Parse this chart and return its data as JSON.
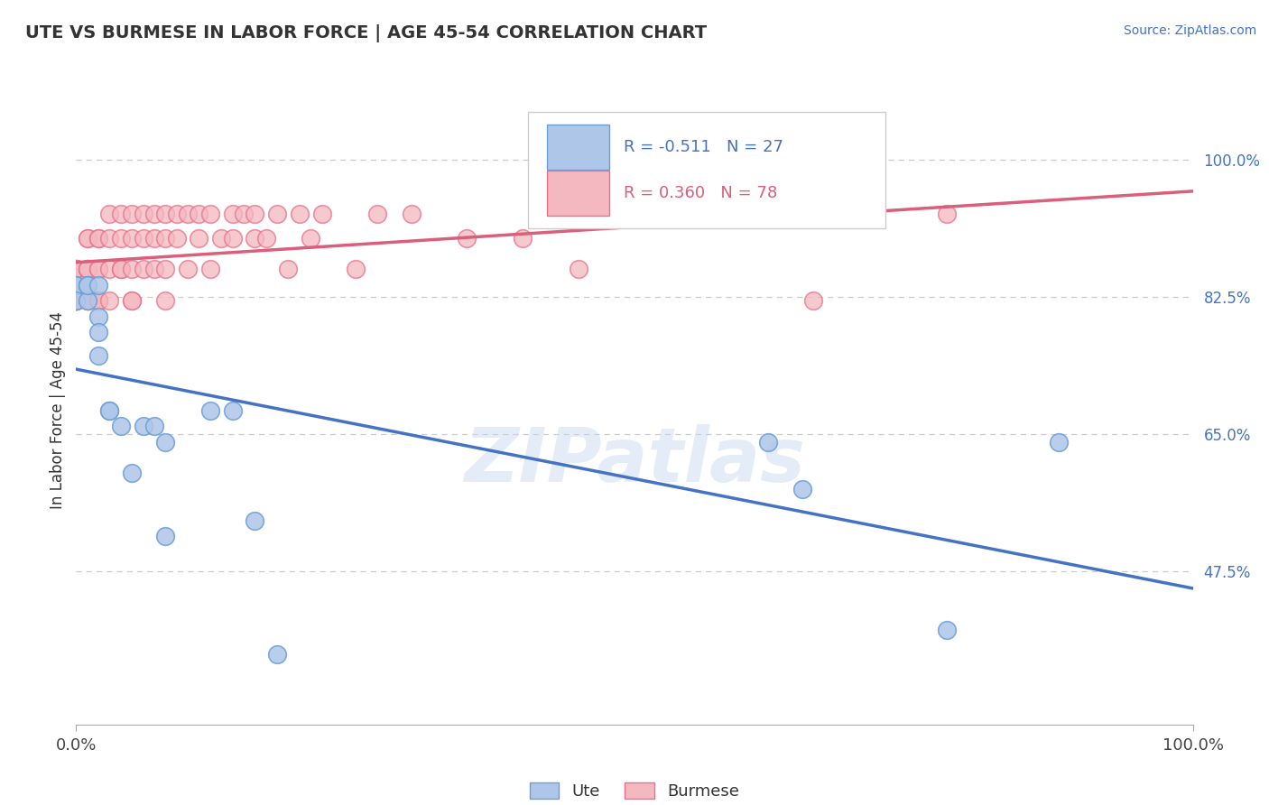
{
  "title": "UTE VS BURMESE IN LABOR FORCE | AGE 45-54 CORRELATION CHART",
  "source_text": "Source: ZipAtlas.com",
  "ylabel": "In Labor Force | Age 45-54",
  "xlim": [
    0.0,
    1.0
  ],
  "ylim": [
    0.28,
    1.08
  ],
  "yticks": [
    0.475,
    0.65,
    0.825,
    1.0
  ],
  "ytick_labels": [
    "47.5%",
    "65.0%",
    "82.5%",
    "100.0%"
  ],
  "xtick_labels": [
    "0.0%",
    "100.0%"
  ],
  "xticks": [
    0.0,
    1.0
  ],
  "ute_color": "#aec6e8",
  "burmese_color": "#f4b8c0",
  "ute_edge_color": "#6a9fd8",
  "burmese_edge_color": "#e8728a",
  "ute_line_color": "#4472c4",
  "burmese_line_color": "#d95f7a",
  "watermark": "ZIPatlas",
  "background_color": "#ffffff",
  "grid_color": "#cccccc",
  "ute_x": [
    0.0,
    0.0,
    0.0,
    0.01,
    0.01,
    0.01,
    0.01,
    0.02,
    0.02,
    0.02,
    0.02,
    0.03,
    0.03,
    0.04,
    0.05,
    0.06,
    0.07,
    0.08,
    0.08,
    0.12,
    0.14,
    0.16,
    0.18,
    0.62,
    0.65,
    0.78,
    0.88
  ],
  "ute_y": [
    0.84,
    0.84,
    0.82,
    0.84,
    0.84,
    0.82,
    0.84,
    0.8,
    0.78,
    0.75,
    0.84,
    0.68,
    0.68,
    0.66,
    0.6,
    0.66,
    0.66,
    0.64,
    0.52,
    0.68,
    0.68,
    0.54,
    0.37,
    0.64,
    0.58,
    0.4,
    0.64
  ],
  "burmese_x": [
    0.0,
    0.0,
    0.0,
    0.0,
    0.0,
    0.0,
    0.0,
    0.0,
    0.0,
    0.0,
    0.0,
    0.01,
    0.01,
    0.01,
    0.01,
    0.01,
    0.01,
    0.01,
    0.01,
    0.02,
    0.02,
    0.02,
    0.02,
    0.02,
    0.02,
    0.02,
    0.03,
    0.03,
    0.03,
    0.03,
    0.04,
    0.04,
    0.04,
    0.04,
    0.05,
    0.05,
    0.05,
    0.05,
    0.05,
    0.06,
    0.06,
    0.06,
    0.07,
    0.07,
    0.07,
    0.08,
    0.08,
    0.08,
    0.08,
    0.09,
    0.09,
    0.1,
    0.1,
    0.11,
    0.11,
    0.12,
    0.12,
    0.13,
    0.14,
    0.14,
    0.15,
    0.16,
    0.16,
    0.17,
    0.18,
    0.19,
    0.2,
    0.21,
    0.22,
    0.25,
    0.27,
    0.3,
    0.35,
    0.4,
    0.45,
    0.52,
    0.66,
    0.78
  ],
  "burmese_y": [
    0.86,
    0.86,
    0.86,
    0.86,
    0.82,
    0.82,
    0.82,
    0.82,
    0.82,
    0.82,
    0.82,
    0.9,
    0.9,
    0.86,
    0.86,
    0.86,
    0.82,
    0.82,
    0.82,
    0.9,
    0.9,
    0.86,
    0.86,
    0.82,
    0.82,
    0.82,
    0.93,
    0.9,
    0.86,
    0.82,
    0.93,
    0.9,
    0.86,
    0.86,
    0.93,
    0.9,
    0.86,
    0.82,
    0.82,
    0.93,
    0.9,
    0.86,
    0.93,
    0.9,
    0.86,
    0.93,
    0.9,
    0.86,
    0.82,
    0.93,
    0.9,
    0.93,
    0.86,
    0.93,
    0.9,
    0.93,
    0.86,
    0.9,
    0.93,
    0.9,
    0.93,
    0.93,
    0.9,
    0.9,
    0.93,
    0.86,
    0.93,
    0.9,
    0.93,
    0.86,
    0.93,
    0.93,
    0.9,
    0.9,
    0.86,
    0.93,
    0.82,
    0.93
  ]
}
